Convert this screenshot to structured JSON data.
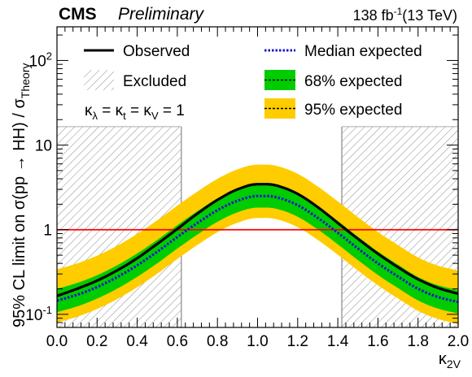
{
  "header": {
    "experiment": "CMS",
    "status": "Preliminary",
    "lumi_value": "138 fb",
    "lumi_exponent": "-1",
    "energy": "(13 TeV)"
  },
  "chart_data": {
    "type": "line",
    "xlabel": "κ",
    "xlabel_sub": "2V",
    "ylabel": "95% CL limit on σ(pp → HH) / σ",
    "ylabel_sub": "Theory",
    "xlim": [
      0.0,
      2.0
    ],
    "ylim": [
      0.07,
      250
    ],
    "y_scale": "log",
    "x_ticks": [
      "0.0",
      "0.2",
      "0.4",
      "0.6",
      "0.8",
      "1.0",
      "1.2",
      "1.4",
      "1.6",
      "1.8",
      "2.0"
    ],
    "y_ticks": [
      {
        "value": 0.1,
        "base": "10",
        "exp": "-1"
      },
      {
        "value": 1,
        "base": "1",
        "exp": ""
      },
      {
        "value": 10,
        "base": "10",
        "exp": ""
      },
      {
        "value": 100,
        "base": "10",
        "exp": "2"
      }
    ],
    "annotation": {
      "text": "κλ = κt = κV = 1"
    },
    "reference_line": {
      "y": 1,
      "color": "#ff0000"
    },
    "excluded_regions": [
      [
        0.0,
        0.62
      ],
      [
        1.42,
        2.0
      ]
    ],
    "excluded_ymax": 16.5,
    "x": [
      0.0,
      0.1,
      0.2,
      0.3,
      0.4,
      0.5,
      0.6,
      0.7,
      0.8,
      0.9,
      1.0,
      1.05,
      1.1,
      1.2,
      1.3,
      1.4,
      1.5,
      1.6,
      1.7,
      1.8,
      1.9,
      2.0
    ],
    "series": [
      {
        "name": "Observed",
        "color": "#000000",
        "style": "solid",
        "values": [
          0.165,
          0.2,
          0.25,
          0.33,
          0.46,
          0.68,
          1.02,
          1.55,
          2.25,
          3.0,
          3.45,
          3.45,
          3.3,
          2.65,
          1.85,
          1.2,
          0.78,
          0.52,
          0.36,
          0.26,
          0.205,
          0.175
        ]
      },
      {
        "name": "Median expected",
        "color": "#1a1ac8",
        "style": "dotted",
        "values": [
          0.145,
          0.17,
          0.21,
          0.275,
          0.38,
          0.55,
          0.82,
          1.2,
          1.7,
          2.2,
          2.5,
          2.5,
          2.4,
          1.95,
          1.38,
          0.92,
          0.6,
          0.4,
          0.28,
          0.2,
          0.16,
          0.14
        ]
      }
    ],
    "band_68_factor_up": 1.38,
    "band_68_factor_down": 0.73,
    "band_95_factor_up": 2.35,
    "band_95_factor_down": 0.55,
    "colors": {
      "band_68": "#00cc00",
      "band_95": "#ffcc00",
      "hatch": "#888888",
      "axis": "#000000"
    },
    "legend": {
      "observed": "Observed",
      "median": "Median expected",
      "excluded": "Excluded",
      "band68": "68% expected",
      "band95": "95% expected"
    }
  }
}
